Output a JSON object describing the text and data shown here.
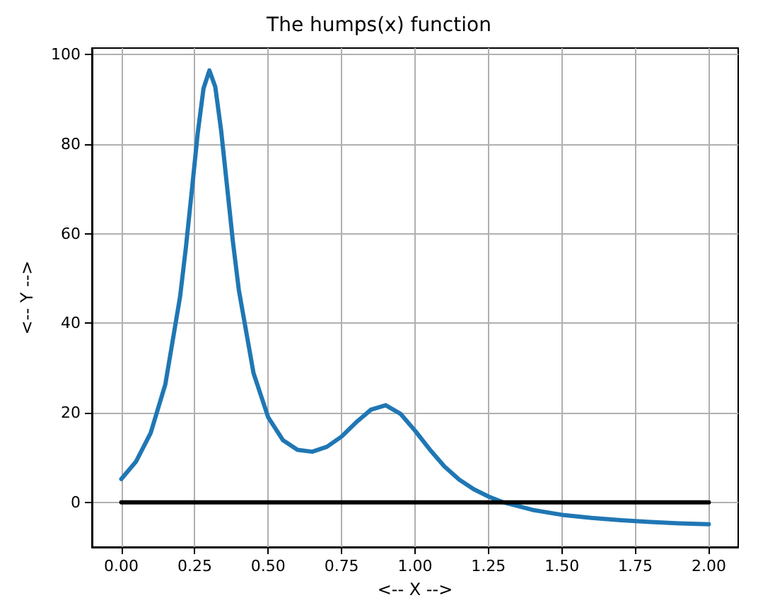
{
  "chart_data": {
    "type": "line",
    "title": "The humps(x) function",
    "xlabel": "<-- X -->",
    "ylabel": "<-- Y -->",
    "series": [
      {
        "color": "#1f77b4",
        "x": [
          0,
          0.05,
          0.1,
          0.15,
          0.2,
          0.22,
          0.24,
          0.26,
          0.28,
          0.3,
          0.32,
          0.34,
          0.36,
          0.38,
          0.4,
          0.45,
          0.5,
          0.55,
          0.6,
          0.65,
          0.7,
          0.75,
          0.8,
          0.85,
          0.9,
          0.95,
          1.0,
          1.05,
          1.1,
          1.15,
          1.2,
          1.25,
          1.3,
          1.4,
          1.5,
          1.6,
          1.7,
          1.8,
          1.9,
          2.0
        ],
        "values": [
          5.2,
          9.1,
          15.5,
          26.4,
          45.9,
          57.0,
          69.6,
          82.4,
          92.5,
          96.5,
          92.8,
          83.0,
          70.6,
          58.2,
          47.5,
          28.9,
          19.0,
          13.9,
          11.7,
          11.3,
          12.4,
          14.7,
          17.9,
          20.7,
          21.7,
          19.8,
          16.0,
          11.8,
          8.0,
          5.1,
          2.9,
          1.3,
          0.0,
          -1.7,
          -2.8,
          -3.5,
          -4.0,
          -4.4,
          -4.7,
          -4.9
        ]
      },
      {
        "color": "#000000",
        "x": [
          0,
          2
        ],
        "values": [
          0,
          0
        ]
      }
    ],
    "xlim": [
      -0.1,
      2.1
    ],
    "ylim": [
      -10,
      101.5
    ],
    "xticks": [
      {
        "value": 0,
        "label": "0.00"
      },
      {
        "value": 0.25,
        "label": "0.25"
      },
      {
        "value": 0.5,
        "label": "0.50"
      },
      {
        "value": 0.75,
        "label": "0.75"
      },
      {
        "value": 1,
        "label": "1.00"
      },
      {
        "value": 1.25,
        "label": "1.25"
      },
      {
        "value": 1.5,
        "label": "1.50"
      },
      {
        "value": 1.75,
        "label": "1.75"
      },
      {
        "value": 2,
        "label": "2.00"
      }
    ],
    "yticks": [
      0,
      20,
      40,
      60,
      80,
      100
    ],
    "grid": true,
    "marker": "none",
    "line_style": "solid"
  }
}
